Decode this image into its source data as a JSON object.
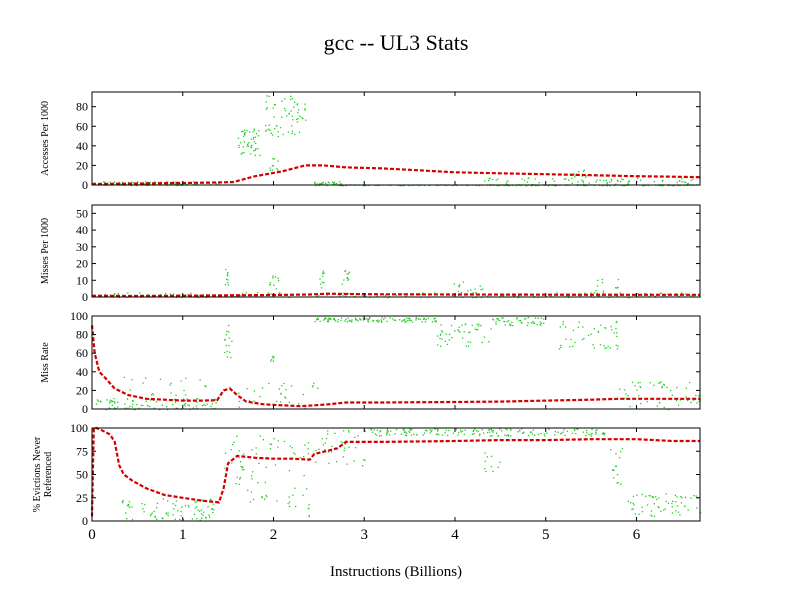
{
  "chart_data": {
    "type": "line",
    "title": "gcc -- UL3  Stats",
    "xlabel": "Instructions (Billions)",
    "xlim": [
      0,
      6.7
    ],
    "xticks": [
      "0",
      "1",
      "2",
      "3",
      "4",
      "5",
      "6"
    ],
    "colors": {
      "trend": "#d40000",
      "scatter": "#22cc22",
      "axis": "#000000"
    },
    "panels": [
      {
        "ylabel": "Accesses Per 1000",
        "ylim": [
          0,
          95
        ],
        "yticks": [
          "0",
          "20",
          "40",
          "60",
          "80"
        ],
        "line_x": [
          0,
          0.5,
          1.0,
          1.3,
          1.55,
          1.8,
          2.1,
          2.35,
          2.55,
          2.8,
          3.2,
          3.6,
          4.0,
          4.5,
          5.0,
          5.5,
          6.0,
          6.4,
          6.7
        ],
        "line_y": [
          1,
          1.5,
          2,
          2.5,
          3,
          9,
          14,
          20,
          20,
          18,
          17,
          15,
          13,
          12,
          11,
          10,
          9,
          8.5,
          8
        ],
        "scatter_bands": [
          {
            "x0": 0.0,
            "x1": 1.4,
            "y0": 0,
            "y1": 4,
            "n": 90
          },
          {
            "x0": 1.6,
            "x1": 1.85,
            "y0": 30,
            "y1": 58,
            "n": 45
          },
          {
            "x0": 1.9,
            "x1": 2.35,
            "y0": 50,
            "y1": 92,
            "n": 60
          },
          {
            "x0": 1.95,
            "x1": 2.05,
            "y0": 15,
            "y1": 28,
            "n": 10
          },
          {
            "x0": 2.4,
            "x1": 2.75,
            "y0": 0,
            "y1": 4,
            "n": 30
          },
          {
            "x0": 2.7,
            "x1": 6.7,
            "y0": 0,
            "y1": 0.8,
            "n": 220
          },
          {
            "x0": 4.3,
            "x1": 6.7,
            "y0": 1,
            "y1": 8,
            "n": 70
          },
          {
            "x0": 5.3,
            "x1": 5.5,
            "y0": 8,
            "y1": 16,
            "n": 10
          }
        ]
      },
      {
        "ylabel": "Misses Per 1000",
        "ylim": [
          0,
          55
        ],
        "yticks": [
          "0",
          "10",
          "20",
          "30",
          "40",
          "50"
        ],
        "line_x": [
          0,
          0.5,
          1.0,
          1.5,
          2.0,
          2.4,
          2.6,
          2.8,
          3.2,
          4.0,
          5.0,
          6.0,
          6.7
        ],
        "line_y": [
          0.8,
          0.6,
          0.8,
          1,
          1.2,
          1.5,
          2,
          1.8,
          1.6,
          1.5,
          1.4,
          1.3,
          1.3
        ],
        "scatter_bands": [
          {
            "x0": 0.0,
            "x1": 6.7,
            "y0": 0,
            "y1": 3,
            "n": 160
          },
          {
            "x0": 1.45,
            "x1": 1.5,
            "y0": 5,
            "y1": 18,
            "n": 10
          },
          {
            "x0": 1.95,
            "x1": 2.05,
            "y0": 5,
            "y1": 14,
            "n": 10
          },
          {
            "x0": 2.5,
            "x1": 2.55,
            "y0": 5,
            "y1": 17,
            "n": 10
          },
          {
            "x0": 2.75,
            "x1": 2.85,
            "y0": 8,
            "y1": 17,
            "n": 12
          },
          {
            "x0": 3.9,
            "x1": 4.4,
            "y0": 2,
            "y1": 10,
            "n": 15
          },
          {
            "x0": 5.5,
            "x1": 5.8,
            "y0": 3,
            "y1": 12,
            "n": 12
          }
        ]
      },
      {
        "ylabel": "Miss Rate",
        "ylim": [
          0,
          100
        ],
        "yticks": [
          "0",
          "20",
          "40",
          "60",
          "80",
          "100"
        ],
        "line_x": [
          0,
          0.03,
          0.08,
          0.15,
          0.25,
          0.4,
          0.6,
          0.8,
          1.0,
          1.2,
          1.38,
          1.45,
          1.52,
          1.6,
          1.7,
          1.9,
          2.1,
          2.3,
          2.45,
          2.6,
          2.8,
          3.2,
          4.0,
          4.5,
          5.0,
          5.5,
          5.8,
          6.1,
          6.7
        ],
        "line_y": [
          90,
          60,
          40,
          33,
          22,
          15,
          11,
          10,
          9,
          9,
          9.5,
          20,
          22,
          15,
          8,
          5,
          4,
          3,
          4,
          5,
          7,
          7,
          7.5,
          8,
          9,
          10,
          11,
          11,
          11
        ],
        "scatter_bands": [
          {
            "x0": 0.0,
            "x1": 1.4,
            "y0": 0,
            "y1": 12,
            "n": 90
          },
          {
            "x0": 0.3,
            "x1": 1.3,
            "y0": 15,
            "y1": 35,
            "n": 20
          },
          {
            "x0": 1.45,
            "x1": 1.55,
            "y0": 55,
            "y1": 95,
            "n": 15
          },
          {
            "x0": 1.6,
            "x1": 2.5,
            "y0": 0,
            "y1": 30,
            "n": 30
          },
          {
            "x0": 1.95,
            "x1": 2.0,
            "y0": 45,
            "y1": 60,
            "n": 6
          },
          {
            "x0": 2.45,
            "x1": 3.8,
            "y0": 94,
            "y1": 99,
            "n": 110
          },
          {
            "x0": 3.8,
            "x1": 4.4,
            "y0": 68,
            "y1": 92,
            "n": 45
          },
          {
            "x0": 4.4,
            "x1": 5.0,
            "y0": 90,
            "y1": 99,
            "n": 45
          },
          {
            "x0": 5.1,
            "x1": 5.8,
            "y0": 65,
            "y1": 95,
            "n": 45
          },
          {
            "x0": 5.8,
            "x1": 6.7,
            "y0": 0,
            "y1": 30,
            "n": 50
          }
        ]
      },
      {
        "ylabel": "% Evictions Never Referenced",
        "ylabel_lines": [
          "% Evictions Never",
          "Referenced"
        ],
        "ylim": [
          0,
          100
        ],
        "yticks": [
          "0",
          "25",
          "50",
          "75",
          "100"
        ],
        "line_x": [
          0,
          0.02,
          0.05,
          0.1,
          0.2,
          0.25,
          0.3,
          0.35,
          0.45,
          0.6,
          0.8,
          1.0,
          1.2,
          1.4,
          1.45,
          1.5,
          1.6,
          1.8,
          2.0,
          2.2,
          2.4,
          2.45,
          2.7,
          2.8,
          3.2,
          4.0,
          4.5,
          5.0,
          5.5,
          6.0,
          6.4,
          6.7
        ],
        "line_y": [
          5,
          100,
          100,
          98,
          93,
          85,
          60,
          50,
          43,
          35,
          28,
          25,
          22,
          20,
          35,
          62,
          70,
          68,
          67,
          67,
          66,
          72,
          78,
          85,
          85,
          86,
          87,
          87,
          88,
          88,
          86,
          86
        ],
        "scatter_bands": [
          {
            "x0": 0.3,
            "x1": 1.35,
            "y0": 0,
            "y1": 25,
            "n": 80
          },
          {
            "x0": 1.45,
            "x1": 1.9,
            "y0": 20,
            "y1": 95,
            "n": 40
          },
          {
            "x0": 1.9,
            "x1": 2.4,
            "y0": 5,
            "y1": 90,
            "n": 40
          },
          {
            "x0": 2.45,
            "x1": 3.0,
            "y0": 60,
            "y1": 99,
            "n": 40
          },
          {
            "x0": 3.0,
            "x1": 5.7,
            "y0": 92,
            "y1": 100,
            "n": 160
          },
          {
            "x0": 4.3,
            "x1": 4.5,
            "y0": 50,
            "y1": 75,
            "n": 10
          },
          {
            "x0": 5.7,
            "x1": 5.9,
            "y0": 40,
            "y1": 80,
            "n": 15
          },
          {
            "x0": 5.9,
            "x1": 6.7,
            "y0": 5,
            "y1": 30,
            "n": 60
          }
        ]
      }
    ]
  }
}
